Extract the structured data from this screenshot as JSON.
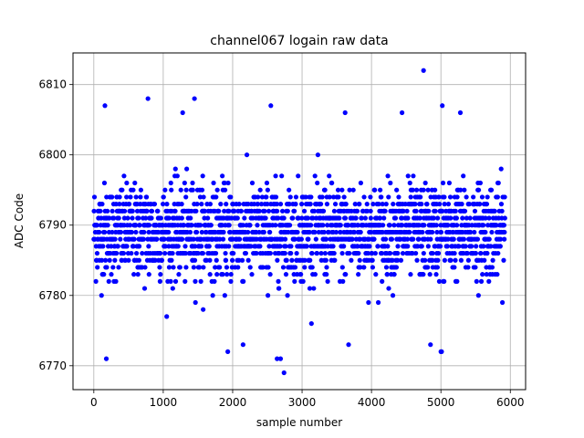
{
  "chart_data": {
    "type": "scatter",
    "title": "channel067 logain raw data",
    "xlabel": "sample number",
    "ylabel": "ADC Code",
    "xlim": [
      -300,
      6220
    ],
    "ylim": [
      6766.6,
      6814.5
    ],
    "xticks": [
      0,
      1000,
      2000,
      3000,
      4000,
      5000,
      6000
    ],
    "yticks": [
      6770,
      6780,
      6790,
      6800,
      6810
    ],
    "xtick_labels": [
      "0",
      "1000",
      "2000",
      "3000",
      "4000",
      "5000",
      "6000"
    ],
    "ytick_labels": [
      "6770",
      "6780",
      "6790",
      "6800",
      "6810"
    ],
    "grid": true,
    "legend": "none",
    "marker_color": "#0000ff",
    "series": [
      {
        "n_points": 5925,
        "x_start": 0,
        "x_end": 5924,
        "typical_range": [
          6778,
          6798
        ],
        "center": 6789,
        "outliers": [
          {
            "x": 4750,
            "y": 6812
          },
          {
            "x": 160,
            "y": 6807
          },
          {
            "x": 780,
            "y": 6808
          },
          {
            "x": 1450,
            "y": 6808
          },
          {
            "x": 2550,
            "y": 6807
          },
          {
            "x": 5020,
            "y": 6807
          },
          {
            "x": 180,
            "y": 6771
          },
          {
            "x": 1930,
            "y": 6772
          },
          {
            "x": 2150,
            "y": 6773
          },
          {
            "x": 2640,
            "y": 6771
          },
          {
            "x": 2690,
            "y": 6771
          },
          {
            "x": 2740,
            "y": 6769
          },
          {
            "x": 3670,
            "y": 6773
          },
          {
            "x": 4850,
            "y": 6773
          },
          {
            "x": 5000,
            "y": 6772
          },
          {
            "x": 5010,
            "y": 6772
          },
          {
            "x": 3620,
            "y": 6806
          },
          {
            "x": 4440,
            "y": 6806
          },
          {
            "x": 5280,
            "y": 6806
          },
          {
            "x": 1280,
            "y": 6806
          }
        ]
      }
    ]
  }
}
